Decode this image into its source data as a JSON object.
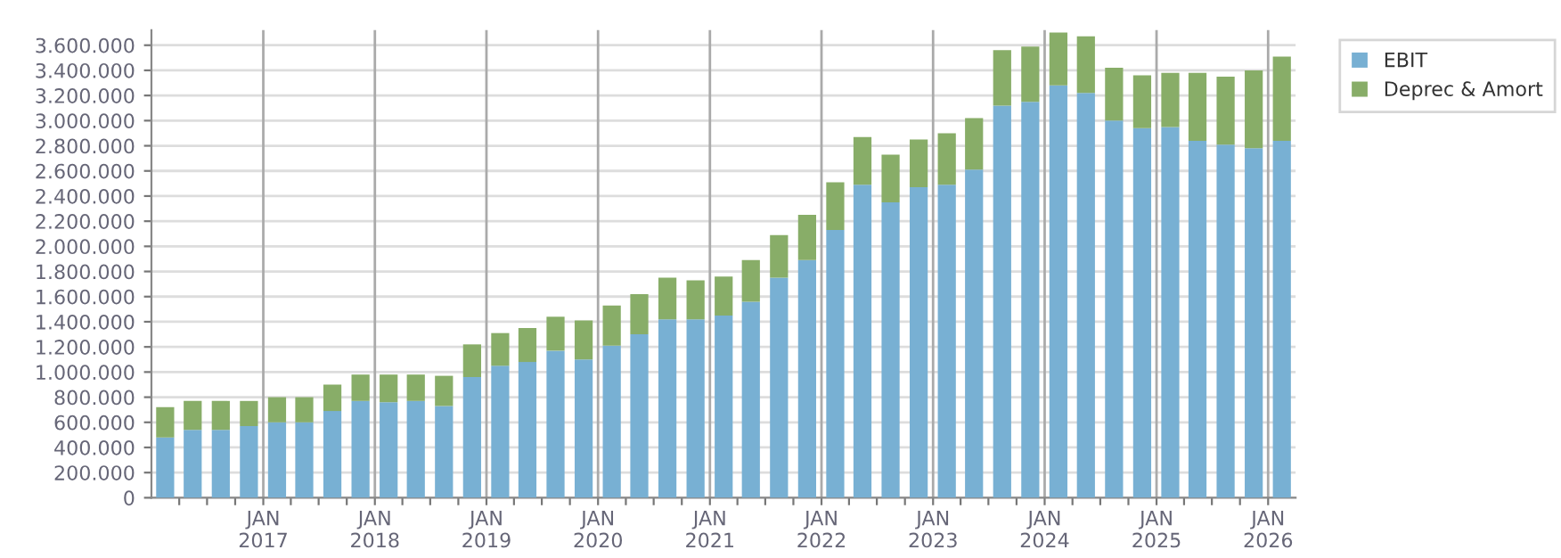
{
  "chart_data": {
    "type": "bar",
    "stacked": true,
    "x": [
      "2016-02-15",
      "2016-05-15",
      "2016-08-15",
      "2016-11-15",
      "2017-02-15",
      "2017-05-15",
      "2017-08-15",
      "2017-11-15",
      "2018-02-15",
      "2018-05-15",
      "2018-08-15",
      "2018-11-15",
      "2019-02-15",
      "2019-05-15",
      "2019-08-15",
      "2019-11-15",
      "2020-02-15",
      "2020-05-15",
      "2020-08-15",
      "2020-11-15",
      "2021-02-15",
      "2021-05-15",
      "2021-08-15",
      "2021-11-15",
      "2022-02-15",
      "2022-05-15",
      "2022-08-15",
      "2022-11-15",
      "2023-02-15",
      "2023-05-15",
      "2023-08-15",
      "2023-11-15",
      "2024-02-15",
      "2024-05-15",
      "2024-08-15",
      "2024-11-15",
      "2025-02-15",
      "2025-05-15",
      "2025-08-15",
      "2025-11-15",
      "2026-02-15"
    ],
    "series": [
      {
        "name": "EBIT",
        "color": "#78b0d3",
        "values": [
          480000,
          540000,
          540000,
          570000,
          600000,
          600000,
          690000,
          770000,
          760000,
          770000,
          730000,
          960000,
          1050000,
          1080000,
          1170000,
          1100000,
          1210000,
          1300000,
          1420000,
          1420000,
          1450000,
          1560000,
          1750000,
          1890000,
          2130000,
          2490000,
          2350000,
          2470000,
          2490000,
          2610000,
          3120000,
          3150000,
          3280000,
          3220000,
          3000000,
          2940000,
          2950000,
          2840000,
          2810000,
          2780000,
          2840000
        ]
      },
      {
        "name": "Deprec & Amort",
        "color": "#88ad68",
        "values": [
          240000,
          230000,
          230000,
          200000,
          200000,
          200000,
          210000,
          210000,
          220000,
          210000,
          240000,
          260000,
          260000,
          270000,
          270000,
          310000,
          320000,
          320000,
          330000,
          310000,
          310000,
          330000,
          340000,
          360000,
          380000,
          380000,
          380000,
          380000,
          410000,
          410000,
          440000,
          440000,
          420000,
          450000,
          420000,
          420000,
          430000,
          540000,
          540000,
          620000,
          670000
        ]
      }
    ],
    "xlim": [
      "2016-01",
      "2026-04"
    ],
    "xticks": [
      {
        "value": "2016-04",
        "label": null
      },
      {
        "value": "2016-07",
        "label": null
      },
      {
        "value": "2016-10",
        "label": null
      },
      {
        "value": "2017-01",
        "label": "JAN\n2017"
      },
      {
        "value": "2017-04",
        "label": null
      },
      {
        "value": "2017-07",
        "label": null
      },
      {
        "value": "2017-10",
        "label": null
      },
      {
        "value": "2018-01",
        "label": "JAN\n2018"
      },
      {
        "value": "2018-04",
        "label": null
      },
      {
        "value": "2018-07",
        "label": null
      },
      {
        "value": "2018-10",
        "label": null
      },
      {
        "value": "2019-01",
        "label": "JAN\n2019"
      },
      {
        "value": "2019-04",
        "label": null
      },
      {
        "value": "2019-07",
        "label": null
      },
      {
        "value": "2019-10",
        "label": null
      },
      {
        "value": "2020-01",
        "label": "JAN\n2020"
      },
      {
        "value": "2020-04",
        "label": null
      },
      {
        "value": "2020-07",
        "label": null
      },
      {
        "value": "2020-10",
        "label": null
      },
      {
        "value": "2021-01",
        "label": "JAN\n2021"
      },
      {
        "value": "2021-04",
        "label": null
      },
      {
        "value": "2021-07",
        "label": null
      },
      {
        "value": "2021-10",
        "label": null
      },
      {
        "value": "2022-01",
        "label": "JAN\n2022"
      },
      {
        "value": "2022-04",
        "label": null
      },
      {
        "value": "2022-07",
        "label": null
      },
      {
        "value": "2022-10",
        "label": null
      },
      {
        "value": "2023-01",
        "label": "JAN\n2023"
      },
      {
        "value": "2023-04",
        "label": null
      },
      {
        "value": "2023-07",
        "label": null
      },
      {
        "value": "2023-10",
        "label": null
      },
      {
        "value": "2024-01",
        "label": "JAN\n2024"
      },
      {
        "value": "2024-04",
        "label": null
      },
      {
        "value": "2024-07",
        "label": null
      },
      {
        "value": "2024-10",
        "label": null
      },
      {
        "value": "2025-01",
        "label": "JAN\n2025"
      },
      {
        "value": "2025-04",
        "label": null
      },
      {
        "value": "2025-07",
        "label": null
      },
      {
        "value": "2025-10",
        "label": null
      },
      {
        "value": "2026-01",
        "label": "JAN\n2026"
      }
    ],
    "ylim": [
      0,
      3720000
    ],
    "yticks": [
      0,
      {
        "value": 200000,
        "label": "200.000"
      },
      {
        "value": 400000,
        "label": "400.000"
      },
      {
        "value": 600000,
        "label": "600.000"
      },
      {
        "value": 800000,
        "label": "800.000"
      },
      {
        "value": 1000000,
        "label": "1.000.000"
      },
      {
        "value": 1200000,
        "label": "1.200.000"
      },
      {
        "value": 1400000,
        "label": "1.400.000"
      },
      {
        "value": 1600000,
        "label": "1.600.000"
      },
      {
        "value": 1800000,
        "label": "1.800.000"
      },
      {
        "value": 2000000,
        "label": "2.000.000"
      },
      {
        "value": 2200000,
        "label": "2.200.000"
      },
      {
        "value": 2400000,
        "label": "2.400.000"
      },
      {
        "value": 2600000,
        "label": "2.600.000"
      },
      {
        "value": 2800000,
        "label": "2.800.000"
      },
      {
        "value": 3000000,
        "label": "3.000.000"
      },
      {
        "value": 3200000,
        "label": "3.200.000"
      },
      {
        "value": 3400000,
        "label": "3.400.000"
      },
      {
        "value": 3600000,
        "label": "3.600.000"
      }
    ],
    "grid": true,
    "legend": "top right"
  }
}
